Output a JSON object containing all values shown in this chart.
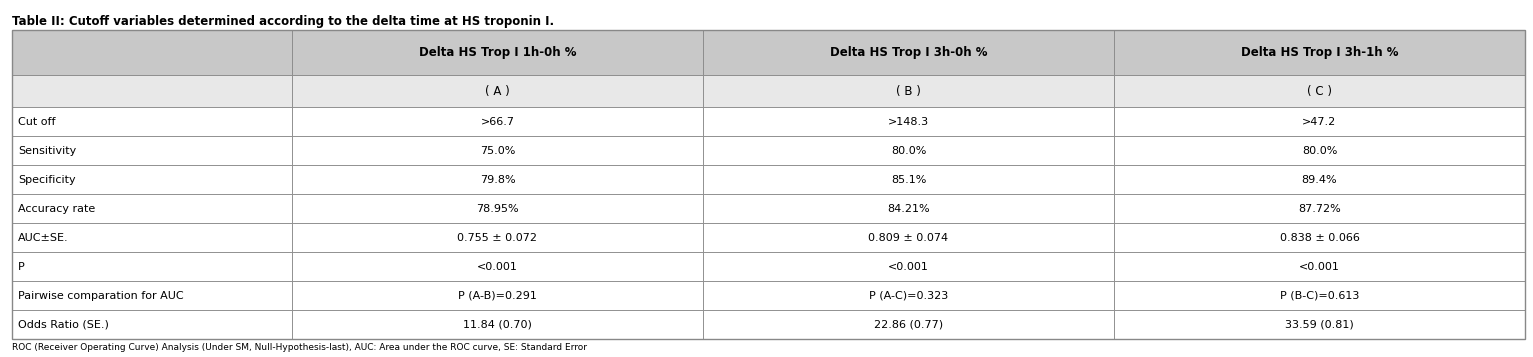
{
  "title": "Table II: Cutoﬀ variables determined according to the delta time at HS troponin I.",
  "footnote": "ROC (Receiver Operating Curve) Analysis (Under SM, Null-Hypothesis-last), AUC: Area under the ROC curve, SE: Standard Error",
  "col_headers": [
    "Delta HS Trop I 1h-0h %",
    "Delta HS Trop I 3h-0h %",
    "Delta HS Trop I 3h-1h %"
  ],
  "sub_headers": [
    "( A )",
    "( B )",
    "( C )"
  ],
  "row_labels": [
    "Cut off",
    "Sensitivity",
    "Specificity",
    "Accuracy rate",
    "AUC±SE.",
    "P",
    "Pairwise comparation for AUC",
    "Odds Ratio (SE.)"
  ],
  "col_A": [
    ">66.7",
    "75.0%",
    "79.8%",
    "78.95%",
    "0.755 ± 0.072",
    "<0.001",
    "P (A-B)=0.291",
    "11.84 (0.70)"
  ],
  "col_B": [
    ">148.3",
    "80.0%",
    "85.1%",
    "84.21%",
    "0.809 ± 0.074",
    "<0.001",
    "P (A-C)=0.323",
    "22.86 (0.77)"
  ],
  "col_C": [
    ">47.2",
    "80.0%",
    "89.4%",
    "87.72%",
    "0.838 ± 0.066",
    "<0.001",
    "P (B-C)=0.613",
    "33.59 (0.81)"
  ],
  "header_gray": "#c8c8c8",
  "sub_header_gray": "#e8e8e8",
  "white": "#ffffff",
  "border_color": "#888888",
  "text_color": "#000000",
  "font_size": 8.0,
  "header_font_size": 8.5,
  "title_font_size": 8.5,
  "footnote_font_size": 6.5,
  "fig_width": 15.33,
  "fig_height": 3.57,
  "dpi": 100
}
